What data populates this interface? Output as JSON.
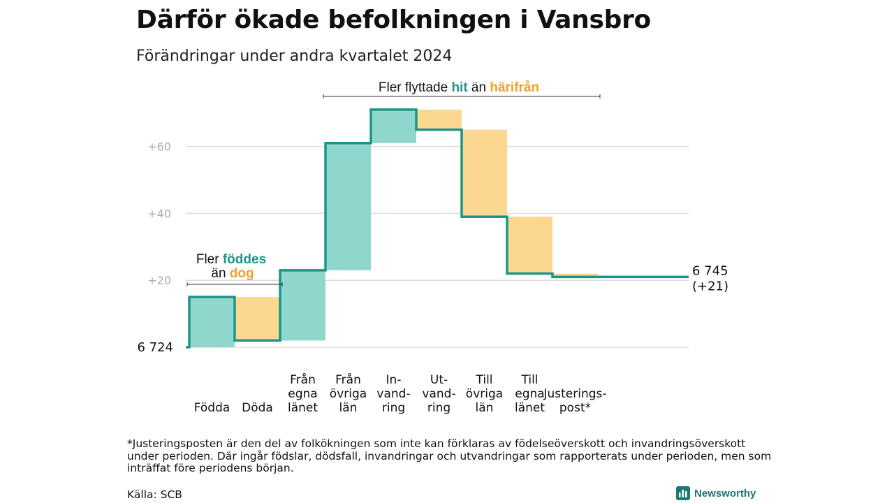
{
  "title": "Därför ökade befolkningen i Vansbro",
  "subtitle": "Förändringar under andra kvartalet 2024",
  "footnote": "*Justeringsposten är den del av folkökningen som inte kan förklaras av födelseöverskott och invandringsöverskott under perioden. Där ingår födslar, dödsfall, invandringar och utvandringar som rapporterats under perioden, men som inträffat före periodens början.",
  "source": "Källa: SCB",
  "brand": {
    "name": "Newsworthy",
    "icon": "newsworthy-chart-icon"
  },
  "colors": {
    "increase": "#8fd6cc",
    "decrease": "#fbd78f",
    "line": "#1e9488",
    "hit_text": "#1e9488",
    "away_text": "#f0a12b",
    "grid": "#dddddd",
    "tick_text": "#aaaaaa"
  },
  "chart_data": {
    "type": "waterfall",
    "start": {
      "label": "6  724",
      "value": 0
    },
    "end": {
      "label": "6 745",
      "change_label": "(+21)",
      "value": 21
    },
    "steps": [
      {
        "label": [
          "Födda"
        ],
        "change": 15,
        "kind": "increase"
      },
      {
        "label": [
          "Döda"
        ],
        "change": -13,
        "kind": "decrease"
      },
      {
        "label": [
          "Från",
          "egna",
          "länet"
        ],
        "change": 21,
        "kind": "increase"
      },
      {
        "label": [
          "Från",
          "övriga",
          "län"
        ],
        "change": 38,
        "kind": "increase"
      },
      {
        "label": [
          "In-",
          "vand-",
          "ring"
        ],
        "change": 10,
        "kind": "increase"
      },
      {
        "label": [
          "Ut-",
          "vand-",
          "ring"
        ],
        "change": -6,
        "kind": "decrease"
      },
      {
        "label": [
          "Till",
          "övriga",
          "län"
        ],
        "change": -26,
        "kind": "decrease"
      },
      {
        "label": [
          "Till",
          "egna",
          "länet"
        ],
        "change": -17,
        "kind": "decrease"
      },
      {
        "label": [
          "Justerings-",
          "post*"
        ],
        "change": -1,
        "kind": "decrease"
      }
    ],
    "y_ticks": [
      {
        "value": 20,
        "label": "+20"
      },
      {
        "value": 40,
        "label": "+40"
      },
      {
        "value": 60,
        "label": "+60"
      }
    ],
    "ylim": [
      0,
      70
    ],
    "grid": true,
    "annotations": {
      "births": {
        "prefix": "Fler",
        "hit": "föddes",
        "mid": "än",
        "away": "dog"
      },
      "moves": {
        "prefix": "Fler flyttade",
        "hit": "hit",
        "mid": "än",
        "away": "härifrån"
      }
    }
  }
}
